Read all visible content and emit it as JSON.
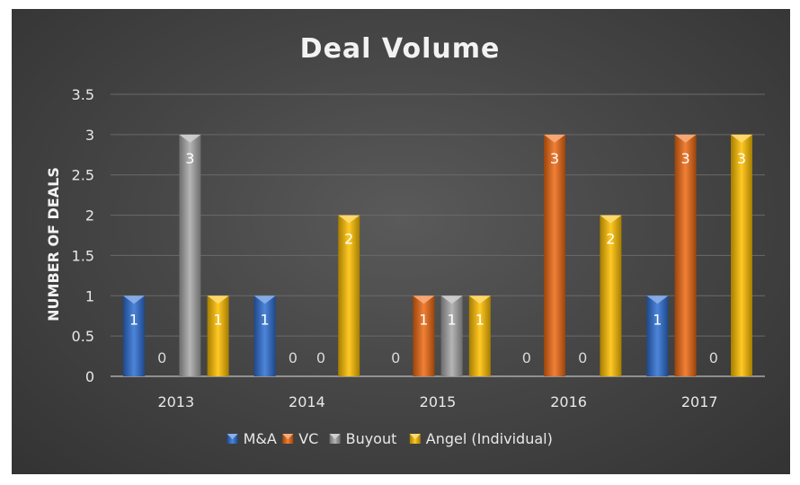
{
  "chart_data": {
    "type": "bar",
    "title": "Deal Volume",
    "xlabel": "",
    "ylabel": "NUMBER OF DEALS",
    "categories": [
      "2013",
      "2014",
      "2015",
      "2016",
      "2017"
    ],
    "ylim": [
      0,
      3.5
    ],
    "yticks": [
      "0",
      "0.5",
      "1",
      "1.5",
      "2",
      "2.5",
      "3",
      "3.5"
    ],
    "grid": true,
    "legend_position": "bottom",
    "series": [
      {
        "name": "M&A",
        "color": "#2e6fd4",
        "values": [
          1,
          1,
          0,
          0,
          1
        ]
      },
      {
        "name": "VC",
        "color": "#ee6a12",
        "values": [
          0,
          0,
          1,
          3,
          3
        ]
      },
      {
        "name": "Buyout",
        "color": "#a8a8a8",
        "values": [
          3,
          0,
          1,
          0,
          0
        ]
      },
      {
        "name": "Angel (Individual)",
        "color": "#ffc000",
        "values": [
          1,
          2,
          1,
          2,
          3
        ]
      }
    ]
  }
}
